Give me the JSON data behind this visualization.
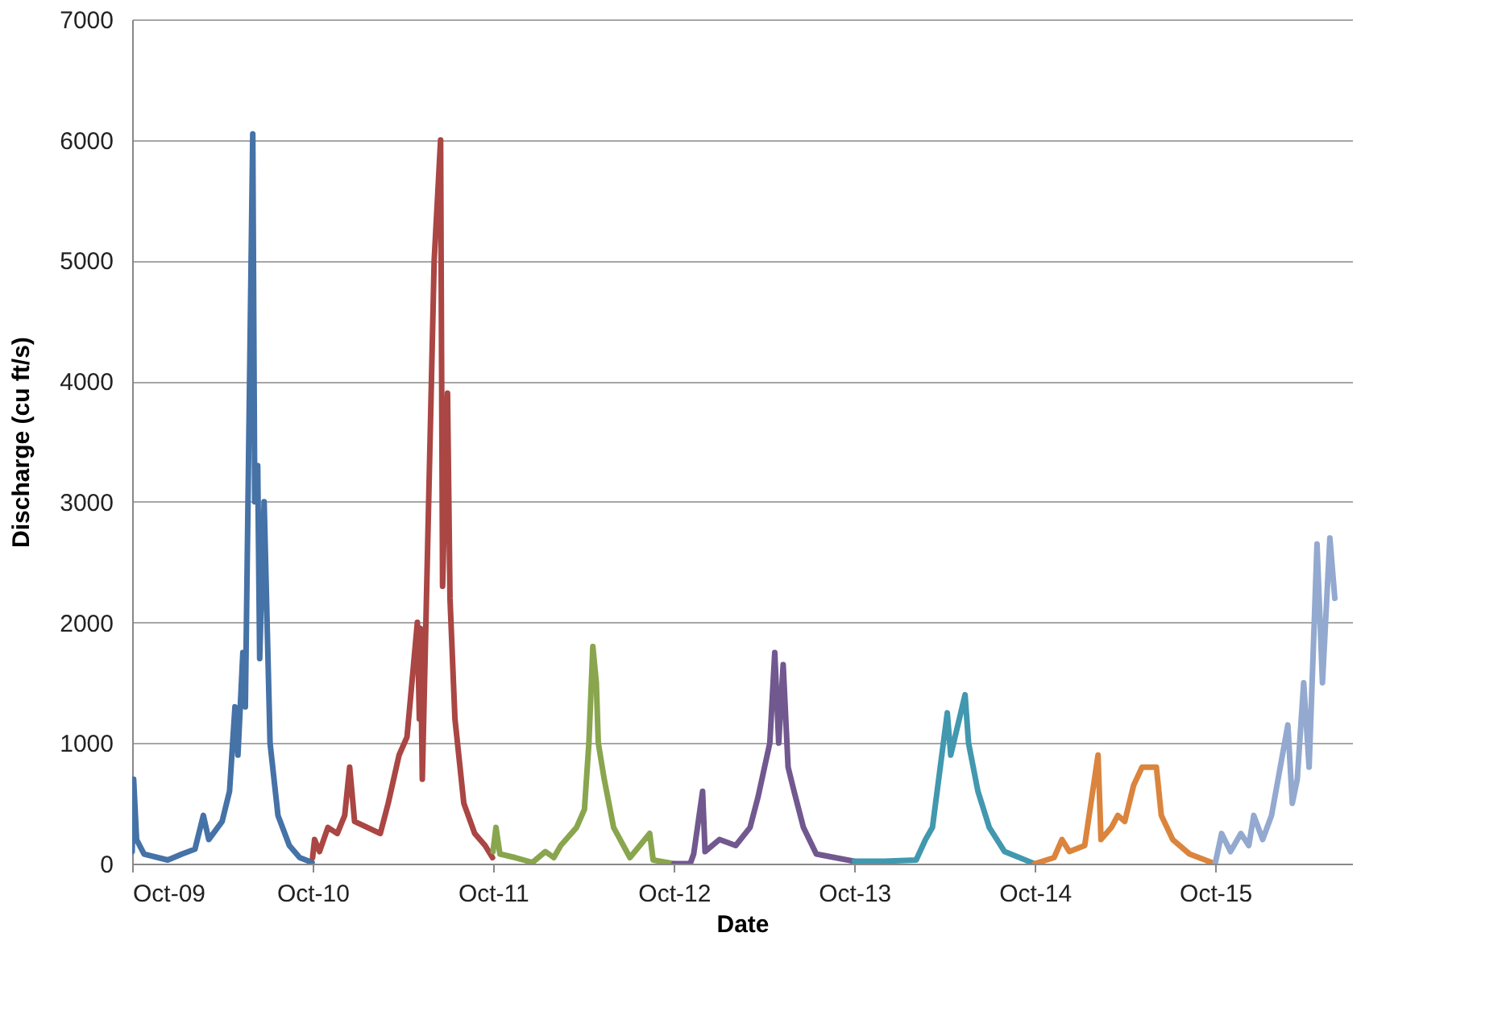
{
  "chart_data": {
    "type": "line",
    "xlabel": "Date",
    "ylabel": "Discharge  (cu ft/s)",
    "xlim": [
      "2009-10-01",
      "2016-07-04"
    ],
    "xticks": [
      {
        "value": "2009-10-01",
        "label": "Oct-09"
      },
      {
        "value": "2010-10-01",
        "label": "Oct-10"
      },
      {
        "value": "2011-10-01",
        "label": "Oct-11"
      },
      {
        "value": "2012-10-01",
        "label": "Oct-12"
      },
      {
        "value": "2013-10-01",
        "label": "Oct-13"
      },
      {
        "value": "2014-10-01",
        "label": "Oct-14"
      },
      {
        "value": "2015-10-01",
        "label": "Oct-15"
      }
    ],
    "ylim": [
      0,
      7000
    ],
    "yticks": [
      0,
      1000,
      2000,
      3000,
      4000,
      5000,
      6000,
      7000
    ],
    "grid": "y",
    "legend": false,
    "marker": "none",
    "line_style": "solid",
    "series": [
      {
        "color": "#4572a7",
        "x": [
          "2009-10-01",
          "2009-10-04",
          "2009-10-10",
          "2009-10-25",
          "2009-12-12",
          "2010-01-10",
          "2010-02-05",
          "2010-02-22",
          "2010-03-05",
          "2010-04-01",
          "2010-04-16",
          "2010-04-27",
          "2010-05-03",
          "2010-05-13",
          "2010-05-18",
          "2010-06-02",
          "2010-06-06",
          "2010-06-12",
          "2010-06-16",
          "2010-06-25",
          "2010-07-07",
          "2010-07-23",
          "2010-08-15",
          "2010-09-05",
          "2010-09-30"
        ],
        "values": [
          100,
          700,
          200,
          80,
          30,
          80,
          120,
          400,
          200,
          350,
          600,
          1300,
          900,
          1750,
          1300,
          6050,
          3000,
          3300,
          1700,
          3000,
          1000,
          400,
          150,
          50,
          10
        ]
      },
      {
        "color": "#aa4643",
        "x": [
          "2010-10-01",
          "2010-10-05",
          "2010-10-15",
          "2010-11-01",
          "2010-11-20",
          "2010-12-05",
          "2010-12-15",
          "2010-12-25",
          "2011-01-20",
          "2011-02-15",
          "2011-03-03",
          "2011-03-25",
          "2011-04-10",
          "2011-05-01",
          "2011-05-05",
          "2011-05-07",
          "2011-05-11",
          "2011-06-04",
          "2011-06-17",
          "2011-06-21",
          "2011-07-01",
          "2011-07-06",
          "2011-07-16",
          "2011-08-03",
          "2011-08-25",
          "2011-09-15",
          "2011-09-30"
        ],
        "values": [
          50,
          200,
          100,
          300,
          250,
          400,
          800,
          350,
          300,
          250,
          500,
          900,
          1050,
          2000,
          1200,
          1950,
          700,
          5000,
          6000,
          2300,
          3900,
          2200,
          1200,
          500,
          250,
          150,
          50
        ]
      },
      {
        "color": "#89a54e",
        "x": [
          "2011-10-01",
          "2011-10-07",
          "2011-10-15",
          "2011-11-15",
          "2011-12-20",
          "2012-01-15",
          "2012-02-01",
          "2012-02-15",
          "2012-03-18",
          "2012-04-03",
          "2012-04-12",
          "2012-04-20",
          "2012-04-27",
          "2012-05-01",
          "2012-05-13",
          "2012-06-01",
          "2012-07-04",
          "2012-08-13",
          "2012-08-20",
          "2012-09-30"
        ],
        "values": [
          100,
          300,
          80,
          50,
          10,
          100,
          50,
          150,
          300,
          450,
          1000,
          1800,
          1500,
          1000,
          700,
          300,
          50,
          250,
          30,
          0
        ]
      },
      {
        "color": "#71588f",
        "x": [
          "2012-10-01",
          "2012-11-03",
          "2012-11-10",
          "2012-11-28",
          "2012-12-03",
          "2013-01-01",
          "2013-02-03",
          "2013-03-04",
          "2013-03-20",
          "2013-04-13",
          "2013-04-23",
          "2013-05-01",
          "2013-05-10",
          "2013-05-20",
          "2013-06-01",
          "2013-06-20",
          "2013-07-16",
          "2013-09-30"
        ],
        "values": [
          0,
          0,
          80,
          600,
          100,
          200,
          150,
          300,
          550,
          1000,
          1750,
          1000,
          1650,
          800,
          600,
          300,
          80,
          20
        ]
      },
      {
        "color": "#4198af",
        "x": [
          "2013-10-01",
          "2013-12-01",
          "2014-02-03",
          "2014-02-22",
          "2014-03-08",
          "2014-04-07",
          "2014-04-14",
          "2014-05-13",
          "2014-05-20",
          "2014-06-08",
          "2014-07-01",
          "2014-08-01",
          "2014-09-30"
        ],
        "values": [
          20,
          20,
          30,
          200,
          300,
          1250,
          900,
          1400,
          1000,
          600,
          300,
          100,
          0
        ]
      },
      {
        "color": "#db843d",
        "x": [
          "2014-10-01",
          "2014-11-09",
          "2014-11-25",
          "2014-12-10",
          "2015-01-10",
          "2015-02-06",
          "2015-02-12",
          "2015-03-05",
          "2015-03-18",
          "2015-04-01",
          "2015-04-19",
          "2015-05-06",
          "2015-06-04",
          "2015-06-14",
          "2015-07-07",
          "2015-08-10",
          "2015-09-30"
        ],
        "values": [
          0,
          50,
          200,
          100,
          150,
          900,
          200,
          300,
          400,
          350,
          650,
          800,
          800,
          400,
          200,
          80,
          0
        ]
      },
      {
        "color": "#93a9cf",
        "x": [
          "2015-10-01",
          "2015-10-14",
          "2015-11-01",
          "2015-11-22",
          "2015-12-08",
          "2015-12-18",
          "2016-01-05",
          "2016-01-23",
          "2016-02-25",
          "2016-03-05",
          "2016-03-15",
          "2016-03-28",
          "2016-04-08",
          "2016-04-24",
          "2016-05-05",
          "2016-05-20",
          "2016-05-30"
        ],
        "values": [
          0,
          250,
          100,
          250,
          150,
          400,
          200,
          400,
          1150,
          500,
          700,
          1500,
          800,
          2650,
          1500,
          2700,
          2200
        ]
      }
    ]
  }
}
